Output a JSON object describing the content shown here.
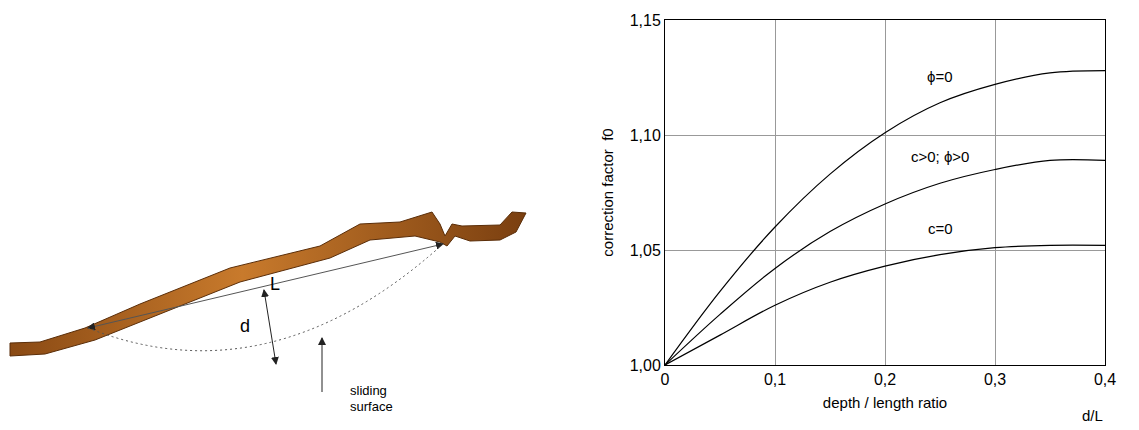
{
  "diagram": {
    "length_label": "L",
    "depth_label": "d",
    "surface_label": "sliding surface"
  },
  "chart_data": {
    "type": "line",
    "xlabel": "depth / length ratio",
    "ylabel": "correction factor  f0",
    "annotations": [
      "d/L"
    ],
    "x": [
      0,
      0.05,
      0.1,
      0.15,
      0.2,
      0.25,
      0.3,
      0.35,
      0.4
    ],
    "series": [
      {
        "name": "ϕ=0",
        "color": "#000000",
        "values": [
          1.0,
          1.032,
          1.06,
          1.083,
          1.101,
          1.114,
          1.122,
          1.127,
          1.128
        ]
      },
      {
        "name": "c>0; ϕ>0",
        "color": "#000000",
        "values": [
          1.0,
          1.022,
          1.042,
          1.058,
          1.07,
          1.079,
          1.085,
          1.089,
          1.089
        ]
      },
      {
        "name": "c=0",
        "color": "#000000",
        "values": [
          1.0,
          1.013,
          1.026,
          1.036,
          1.043,
          1.048,
          1.051,
          1.052,
          1.052
        ]
      }
    ],
    "xlim": [
      0,
      0.4
    ],
    "xticks": [
      0,
      {
        "value": 0.1,
        "label": "0,1"
      },
      {
        "value": 0.2,
        "label": "0,2"
      },
      {
        "value": 0.3,
        "label": "0,3"
      },
      {
        "value": 0.4,
        "label": "0,4"
      }
    ],
    "ylim": [
      1.0,
      1.15
    ],
    "yticks": [
      {
        "value": 1.0,
        "label": "1,00"
      },
      {
        "value": 1.05,
        "label": "1,05"
      },
      {
        "value": 1.1,
        "label": "1,10"
      },
      {
        "value": 1.15,
        "label": "1,15"
      }
    ],
    "grid": true
  }
}
